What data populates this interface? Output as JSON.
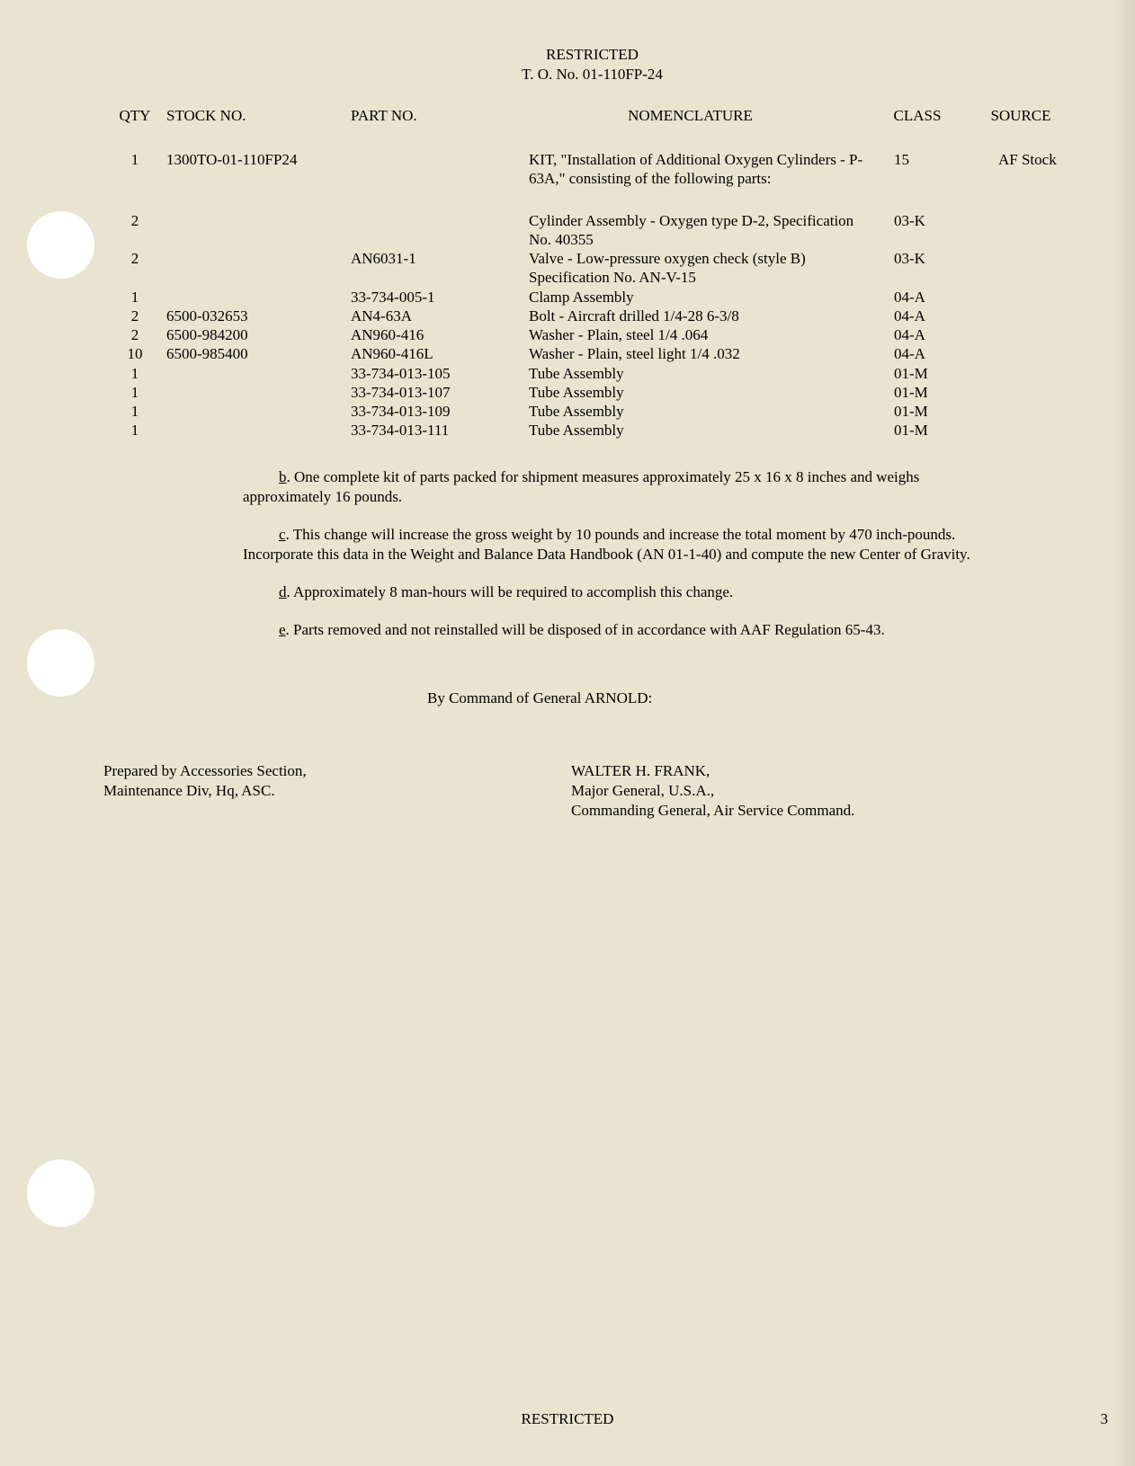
{
  "header": {
    "classification": "RESTRICTED",
    "to_number": "T. O. No. 01-110FP-24"
  },
  "table": {
    "columns": {
      "qty": "QTY",
      "stock": "STOCK NO.",
      "part": "PART NO.",
      "nomen": "NOMENCLATURE",
      "class": "CLASS",
      "source": "SOURCE"
    },
    "rows": [
      {
        "qty": "1",
        "stock": "1300TO-01-110FP24",
        "part": "",
        "nomen": "KIT, \"Installation of Additional Oxygen Cylinders - P-63A,\" consisting of the following parts:",
        "class": "15",
        "source": "AF Stock"
      },
      {
        "qty": "2",
        "stock": "",
        "part": "",
        "nomen": "Cylinder Assembly - Oxygen type D-2, Specification No. 40355",
        "class": "03-K",
        "source": ""
      },
      {
        "qty": "2",
        "stock": "",
        "part": "AN6031-1",
        "nomen": "Valve - Low-pressure oxygen check (style B) Specification No. AN-V-15",
        "class": "03-K",
        "source": ""
      },
      {
        "qty": "1",
        "stock": "",
        "part": "33-734-005-1",
        "nomen": "Clamp Assembly",
        "class": "04-A",
        "source": ""
      },
      {
        "qty": "2",
        "stock": "6500-032653",
        "part": "AN4-63A",
        "nomen": "Bolt - Aircraft drilled 1/4-28 6-3/8",
        "class": "04-A",
        "source": ""
      },
      {
        "qty": "2",
        "stock": "6500-984200",
        "part": "AN960-416",
        "nomen": "Washer - Plain, steel 1/4  .064",
        "class": "04-A",
        "source": ""
      },
      {
        "qty": "10",
        "stock": "6500-985400",
        "part": "AN960-416L",
        "nomen": "Washer - Plain, steel light 1/4  .032",
        "class": "04-A",
        "source": ""
      },
      {
        "qty": "1",
        "stock": "",
        "part": "33-734-013-105",
        "nomen": "Tube Assembly",
        "class": "01-M",
        "source": ""
      },
      {
        "qty": "1",
        "stock": "",
        "part": "33-734-013-107",
        "nomen": "Tube Assembly",
        "class": "01-M",
        "source": ""
      },
      {
        "qty": "1",
        "stock": "",
        "part": "33-734-013-109",
        "nomen": "Tube Assembly",
        "class": "01-M",
        "source": ""
      },
      {
        "qty": "1",
        "stock": "",
        "part": "33-734-013-111",
        "nomen": "Tube Assembly",
        "class": "01-M",
        "source": ""
      }
    ]
  },
  "notes": {
    "b": {
      "label": "b",
      "text": ".  One complete kit of parts packed for shipment measures approximately 25 x 16 x 8 inches and weighs approximately 16 pounds."
    },
    "c": {
      "label": "c",
      "text": ".  This change will increase the gross weight by 10 pounds and increase the total moment by 470 inch-pounds. Incorporate this data in the Weight and Balance Data Handbook (AN 01-1-40) and compute the new Center of Gravity."
    },
    "d": {
      "label": "d",
      "text": ".  Approximately 8 man-hours will be required to accomplish this change."
    },
    "e": {
      "label": "e",
      "text": ".  Parts removed and not reinstalled will be disposed of in accordance with AAF Regulation 65-43."
    }
  },
  "command": "By Command of General ARNOLD:",
  "signatures": {
    "left": {
      "line1": "Prepared by Accessories Section,",
      "line2": "Maintenance Div, Hq, ASC."
    },
    "right": {
      "line1": "WALTER H. FRANK,",
      "line2": "Major General, U.S.A.,",
      "line3": "Commanding General, Air Service Command."
    }
  },
  "footer": {
    "classification": "RESTRICTED",
    "page_number": "3"
  }
}
